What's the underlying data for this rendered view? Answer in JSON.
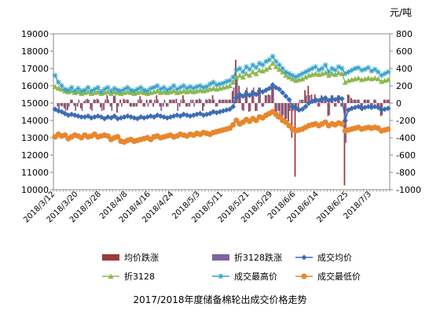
{
  "chart_data": {
    "type": "line",
    "title": "2017/2018年度储备棉轮出成交价格走势",
    "unit_right": "元/吨",
    "left_axis": {
      "ylim": [
        10000,
        19000
      ],
      "ticks": [
        "10000",
        "11000",
        "12000",
        "13000",
        "14000",
        "15000",
        "16000",
        "17000",
        "18000",
        "19000"
      ]
    },
    "right_axis": {
      "ylim": [
        -1000,
        800
      ],
      "ticks": [
        "-1000",
        "-800",
        "-600",
        "-400",
        "-200",
        "0",
        "200",
        "400",
        "600",
        "800"
      ]
    },
    "x_tick_labels": [
      "2018/3/12",
      "2018/3/20",
      "2018/3/28",
      "2018/4/8",
      "2018/4/16",
      "2018/4/24",
      "2018/5/3",
      "2018/5/11",
      "2018/5/21",
      "2018/5/29",
      "2018/6/6",
      "2018/6/14",
      "2018/6/25",
      "2018/7/3"
    ],
    "legend": [
      {
        "label": "均价跌涨",
        "color": "#9b3b3b",
        "kind": "bar"
      },
      {
        "label": "折3128跌涨",
        "color": "#7f64a0",
        "kind": "bar"
      },
      {
        "label": "成交均价",
        "color": "#3d6cb5",
        "kind": "line-diamond"
      },
      {
        "label": "折3128",
        "color": "#8db84f",
        "kind": "line-triangle"
      },
      {
        "label": "成交最高价",
        "color": "#35a1c6",
        "kind": "line-star"
      },
      {
        "label": "成交最低价",
        "color": "#e8872d",
        "kind": "line-circle"
      }
    ],
    "series": [
      {
        "name": "成交均价",
        "axis": "left",
        "color": "#3d6cb5",
        "values": [
          14650,
          14550,
          14500,
          14400,
          14300,
          14350,
          14300,
          14250,
          14200,
          14200,
          14250,
          14150,
          14200,
          14250,
          14200,
          14100,
          14200,
          14150,
          14250,
          14100,
          14150,
          14200,
          14250,
          14200,
          14150,
          14100,
          14200,
          14150,
          14200,
          14250,
          14200,
          14300,
          14250,
          14200,
          14150,
          14200,
          14250,
          14300,
          14250,
          14350,
          14300,
          14250,
          14300,
          14350,
          14400,
          14300,
          14350,
          14400,
          14500,
          14450,
          14500,
          14550,
          14600,
          14650,
          14800,
          15300,
          15500,
          15400,
          15550,
          15450,
          15600,
          15500,
          15700,
          15650,
          15750,
          15850,
          16050,
          15900,
          15800,
          15600,
          15400,
          15200,
          14800,
          14700,
          14600,
          14650,
          14800,
          15000,
          15100,
          15200,
          15150,
          15250,
          15300,
          15150,
          15250,
          15200,
          15300,
          15250,
          14000,
          14600,
          14700,
          14750,
          14800,
          14700,
          14750,
          14800,
          14750,
          14800,
          14750,
          14600,
          14650,
          14700
        ]
      },
      {
        "name": "折3128",
        "axis": "left",
        "color": "#8db84f",
        "values": [
          15950,
          15850,
          15800,
          15700,
          15650,
          15700,
          15600,
          15650,
          15550,
          15600,
          15650,
          15550,
          15600,
          15650,
          15550,
          15600,
          15650,
          15550,
          15650,
          15600,
          15550,
          15600,
          15650,
          15600,
          15550,
          15600,
          15650,
          15600,
          15550,
          15600,
          15650,
          15700,
          15600,
          15650,
          15600,
          15650,
          15700,
          15600,
          15650,
          15700,
          15650,
          15700,
          15650,
          15700,
          15750,
          15700,
          15750,
          15800,
          15850,
          15800,
          15850,
          15900,
          15950,
          16000,
          16200,
          16500,
          16600,
          16500,
          16700,
          16600,
          16800,
          16700,
          16900,
          16850,
          16950,
          17050,
          17300,
          17100,
          16950,
          16800,
          16600,
          16500,
          16400,
          16300,
          16350,
          16400,
          16500,
          16600,
          16650,
          16700,
          16650,
          16700,
          16750,
          16600,
          16700,
          16650,
          16750,
          16700,
          16200,
          16300,
          16350,
          16400,
          16450,
          16350,
          16400,
          16450,
          16400,
          16450,
          16400,
          16250,
          16300,
          16350
        ]
      },
      {
        "name": "成交最高价",
        "axis": "left",
        "color": "#35a1c6",
        "values": [
          16600,
          16200,
          16000,
          15800,
          15750,
          15900,
          15700,
          15850,
          15700,
          15750,
          15900,
          15700,
          15800,
          15900,
          15650,
          15800,
          15900,
          15700,
          15850,
          15750,
          15700,
          15800,
          15900,
          15750,
          15700,
          15800,
          15900,
          15750,
          15700,
          15850,
          15900,
          16000,
          15800,
          15900,
          15750,
          15850,
          16000,
          15800,
          15900,
          16000,
          15850,
          15950,
          15850,
          15950,
          16000,
          15900,
          15950,
          16100,
          16200,
          16050,
          16100,
          16150,
          16250,
          16300,
          16500,
          16900,
          17000,
          16800,
          17100,
          16950,
          17200,
          17050,
          17300,
          17200,
          17400,
          17500,
          17700,
          17400,
          17200,
          17000,
          16800,
          16700,
          16600,
          16500,
          16600,
          16700,
          16800,
          16900,
          17000,
          17100,
          16900,
          17000,
          17200,
          16800,
          17000,
          16900,
          17100,
          17000,
          16700,
          16800,
          16900,
          17000,
          17050,
          16900,
          16950,
          17050,
          16850,
          16950,
          16800,
          16600,
          16700,
          16800
        ]
      },
      {
        "name": "成交最低价",
        "axis": "left",
        "color": "#e8872d",
        "values": [
          13050,
          13200,
          13100,
          13150,
          12950,
          13050,
          13150,
          13100,
          13000,
          13150,
          13050,
          13100,
          13200,
          13050,
          13100,
          13150,
          13100,
          12900,
          13000,
          13050,
          12800,
          12750,
          12850,
          12900,
          12800,
          12850,
          12900,
          12950,
          13000,
          12900,
          13050,
          13100,
          13000,
          13050,
          13100,
          13150,
          13050,
          13100,
          13200,
          13150,
          13100,
          13200,
          13150,
          13250,
          13200,
          13300,
          13250,
          13200,
          13300,
          13350,
          13400,
          13450,
          13500,
          13550,
          13750,
          14000,
          13800,
          13900,
          14050,
          13950,
          14100,
          14000,
          14200,
          14150,
          14300,
          14400,
          14500,
          14350,
          14200,
          14000,
          13900,
          13700,
          13500,
          13400,
          13450,
          13500,
          13600,
          13700,
          13750,
          13800,
          13700,
          13800,
          13900,
          13700,
          13800,
          13750,
          13850,
          13800,
          13400,
          13450,
          13500,
          13550,
          13600,
          13500,
          13550,
          13600,
          13550,
          13600,
          13550,
          13400,
          13450,
          13500
        ]
      },
      {
        "name": "均价跌涨",
        "axis": "right",
        "color": "#9b3b3b",
        "kind": "bar",
        "values": [
          0,
          -40,
          -30,
          -60,
          -80,
          40,
          -30,
          -40,
          -60,
          20,
          50,
          -70,
          40,
          50,
          -50,
          -80,
          90,
          -40,
          80,
          -110,
          40,
          50,
          40,
          -40,
          -40,
          -40,
          80,
          -40,
          40,
          40,
          -40,
          90,
          -40,
          -40,
          -40,
          40,
          40,
          50,
          -40,
          90,
          -40,
          -40,
          40,
          40,
          50,
          -90,
          40,
          50,
          90,
          -40,
          40,
          40,
          40,
          40,
          140,
          500,
          200,
          -80,
          150,
          -100,
          150,
          -90,
          180,
          -40,
          90,
          100,
          190,
          -140,
          -90,
          -190,
          -200,
          -210,
          -400,
          -850,
          -100,
          40,
          150,
          200,
          100,
          100,
          -40,
          90,
          50,
          -150,
          90,
          -40,
          90,
          -40,
          -950,
          100,
          60,
          40,
          40,
          -80,
          40,
          40,
          -40,
          40,
          -40,
          -150,
          40,
          40
        ]
      },
      {
        "name": "折3128跌涨",
        "axis": "right",
        "color": "#7f64a0",
        "kind": "bar",
        "values": [
          0,
          -80,
          -40,
          -90,
          -40,
          40,
          -90,
          40,
          -90,
          40,
          40,
          -90,
          40,
          40,
          -90,
          40,
          40,
          -90,
          90,
          -40,
          -40,
          40,
          40,
          -40,
          -40,
          40,
          40,
          -40,
          -40,
          40,
          40,
          40,
          -90,
          40,
          -40,
          40,
          40,
          -90,
          40,
          40,
          -40,
          40,
          -40,
          40,
          40,
          -40,
          40,
          40,
          40,
          -40,
          40,
          40,
          40,
          40,
          180,
          280,
          90,
          -90,
          180,
          -90,
          180,
          -90,
          180,
          -40,
          90,
          90,
          230,
          -180,
          -140,
          -140,
          -180,
          -90,
          -90,
          -90,
          40,
          40,
          90,
          90,
          40,
          40,
          -40,
          40,
          40,
          -140,
          90,
          -40,
          90,
          -40,
          -460,
          90,
          40,
          40,
          40,
          -90,
          40,
          40,
          -40,
          40,
          -40,
          -140,
          40,
          40
        ]
      }
    ]
  }
}
